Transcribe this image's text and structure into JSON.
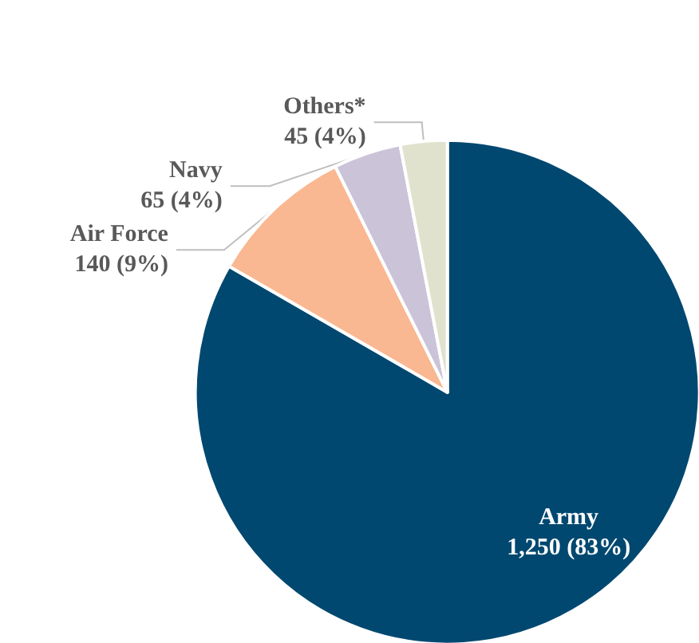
{
  "chart_data": {
    "type": "pie",
    "categories": [
      "Army",
      "Air Force",
      "Navy",
      "Others*"
    ],
    "values": [
      1250,
      140,
      65,
      45
    ],
    "value_labels": [
      "1,250 (83%)",
      "140 (9%)",
      "65 (4%)",
      "45 (4%)"
    ],
    "colors": [
      "#004870",
      "#f9b891",
      "#cbc3d8",
      "#e0e2cd"
    ]
  }
}
